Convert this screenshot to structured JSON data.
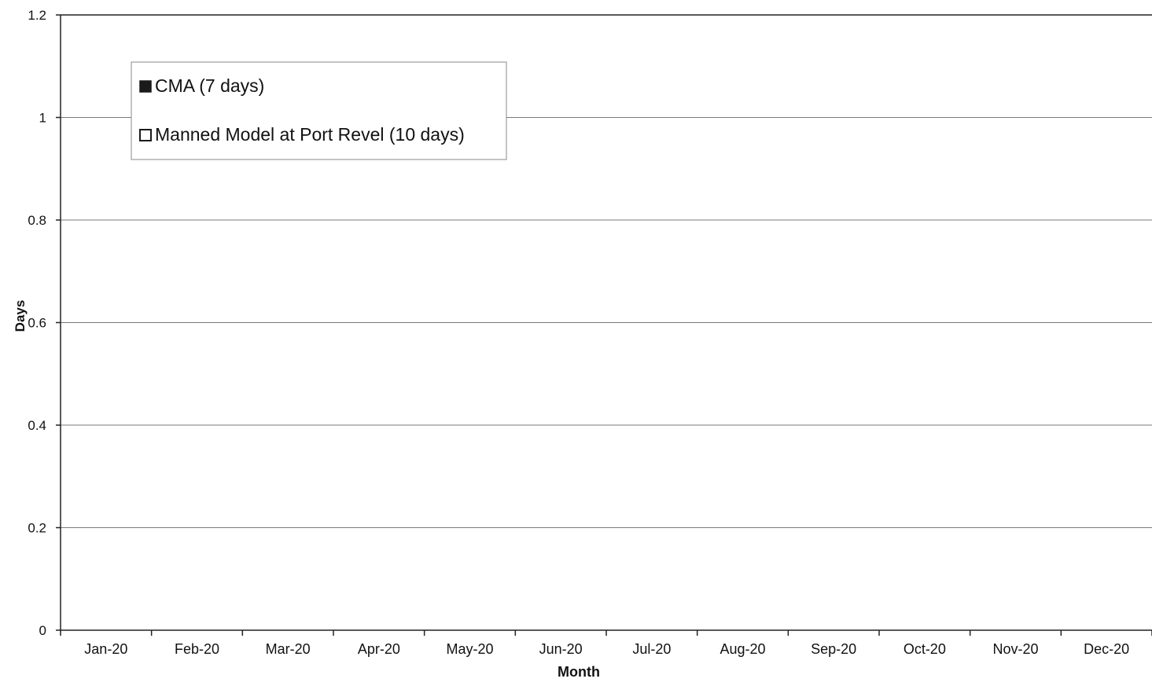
{
  "chart_data": {
    "type": "bar",
    "title": "",
    "xlabel": "Month",
    "ylabel": "Days",
    "categories": [
      "Jan-20",
      "Feb-20",
      "Mar-20",
      "Apr-20",
      "May-20",
      "Jun-20",
      "Jul-20",
      "Aug-20",
      "Sep-20",
      "Oct-20",
      "Nov-20",
      "Dec-20"
    ],
    "series": [
      {
        "name": "CMA (7 days)",
        "color": "#1a1a1a",
        "values": [
          0,
          0,
          0,
          0,
          0,
          0,
          0,
          0,
          0,
          0,
          0,
          0
        ]
      },
      {
        "name": "Manned Model at Port Revel (10 days)",
        "color": "#ffffff",
        "values": [
          0,
          0,
          0,
          0,
          0,
          0,
          0,
          0,
          0,
          0,
          0,
          0
        ]
      }
    ],
    "ylim": [
      0,
      1.2
    ],
    "yticks": [
      "0",
      "0.2",
      "0.4",
      "0.6",
      "0.8",
      "1",
      "1.2"
    ],
    "grid": true,
    "legend_position": "top-left"
  }
}
